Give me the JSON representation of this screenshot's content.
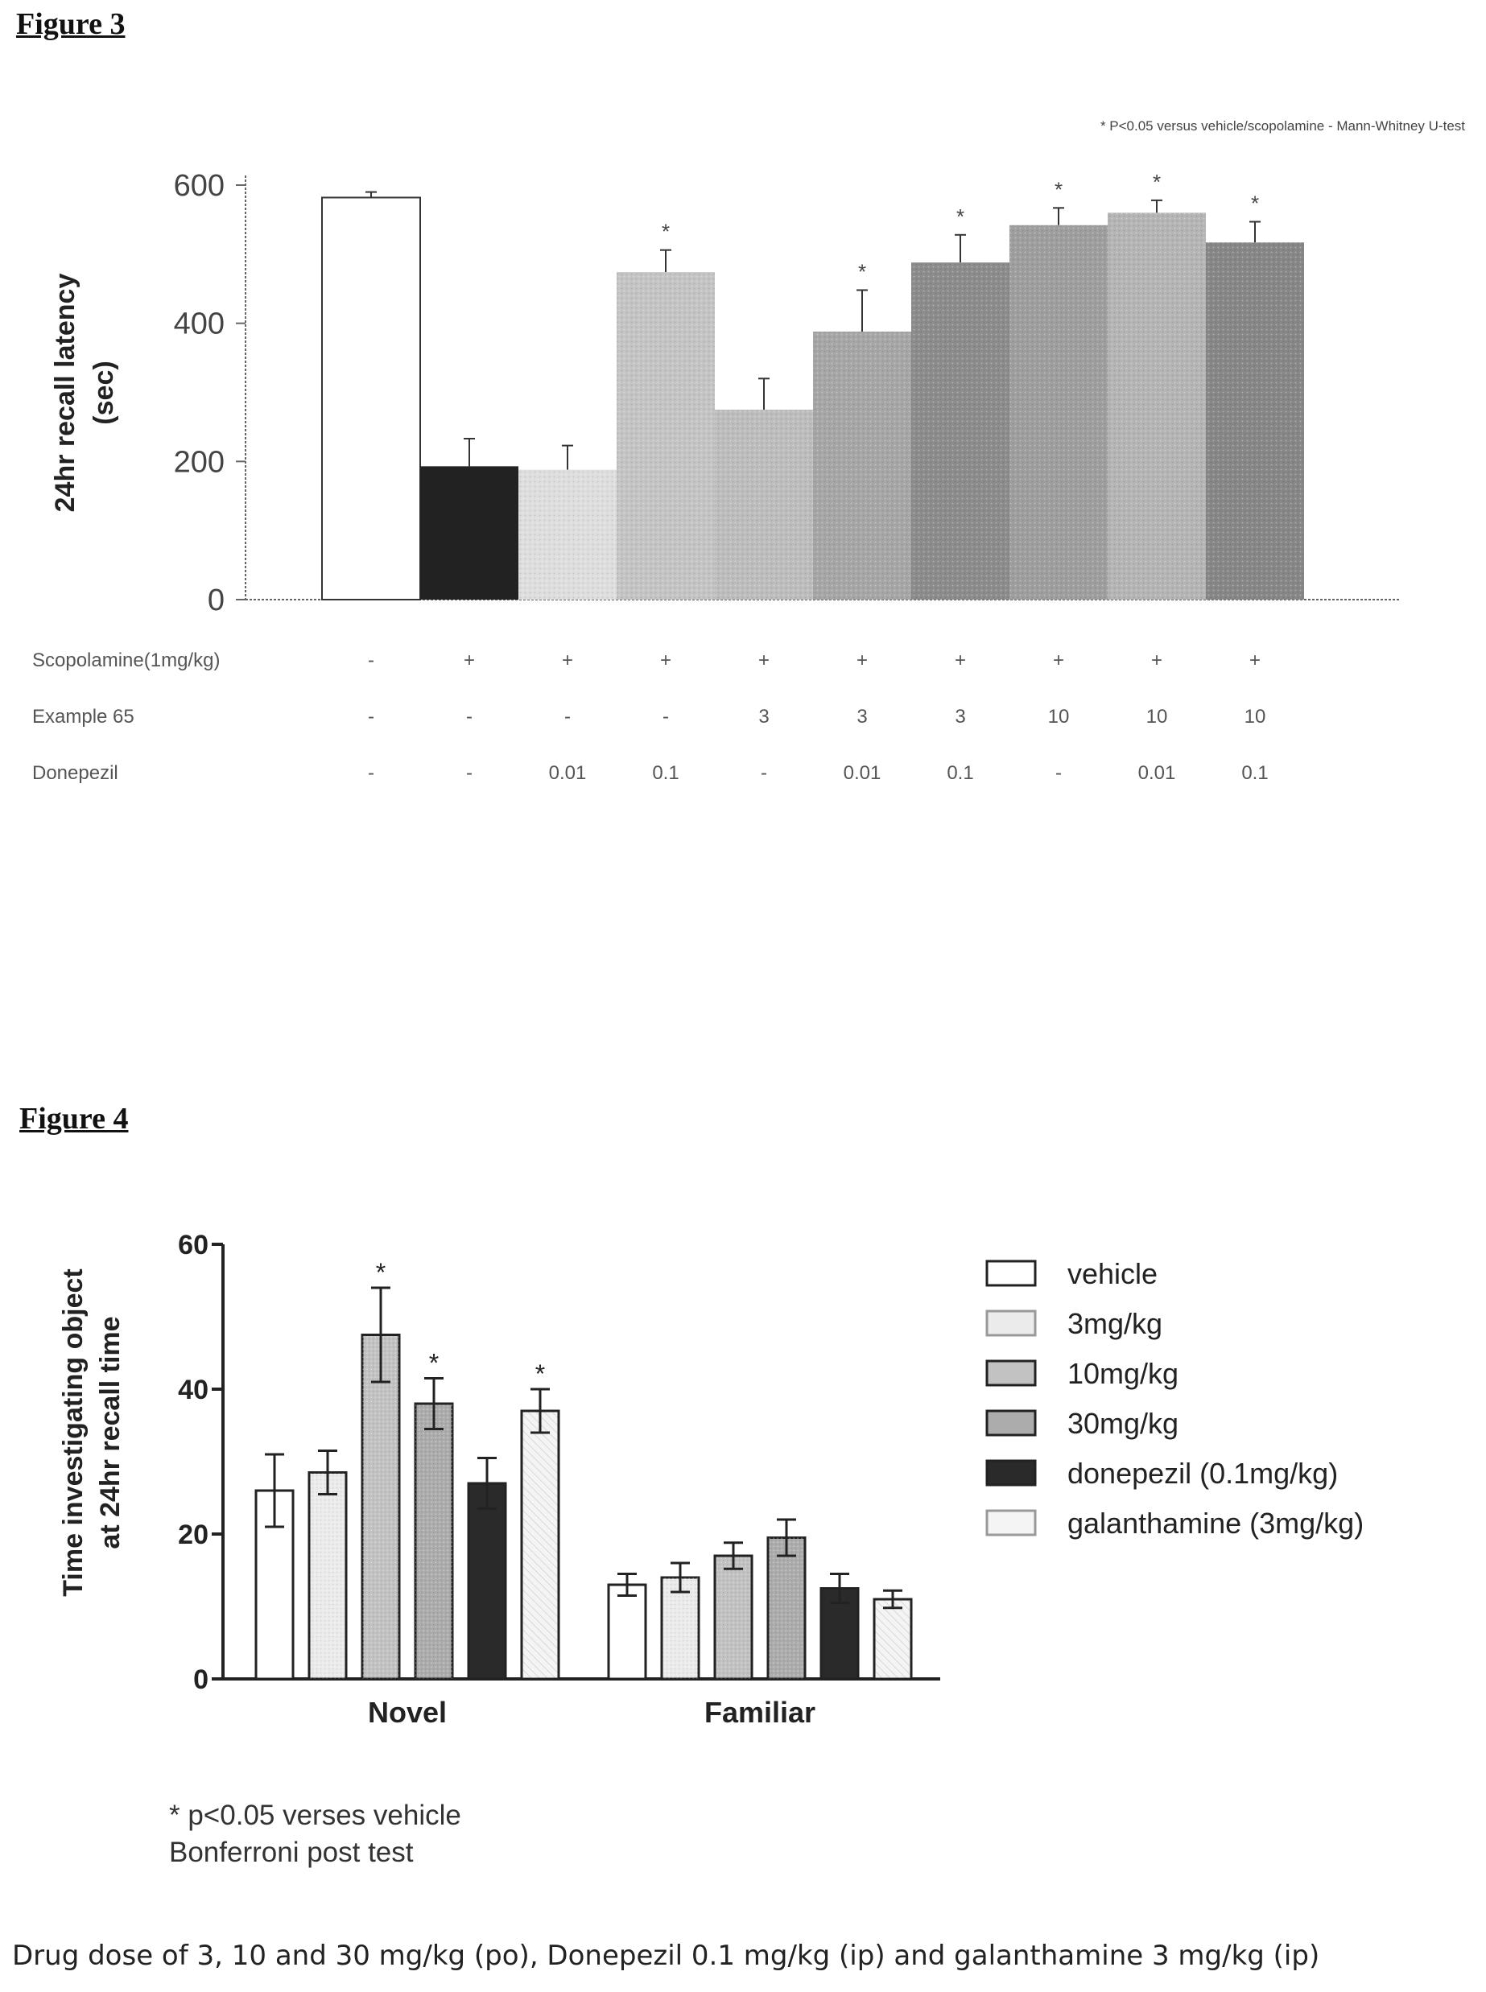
{
  "figure3": {
    "heading": "Figure 3",
    "chart_data": {
      "type": "bar",
      "ylabel_line1": "24hr recall latency",
      "ylabel_line2": "(sec)",
      "ylim": [
        0,
        600
      ],
      "yticks": [
        0,
        200,
        400,
        600
      ],
      "significance_note": "* P<0.05 versus vehicle/scopolamine - Mann-Whitney U-test",
      "values": [
        582,
        193,
        188,
        474,
        275,
        388,
        488,
        542,
        560,
        517
      ],
      "errors": [
        8,
        40,
        35,
        32,
        45,
        60,
        40,
        25,
        18,
        30
      ],
      "significant": [
        false,
        false,
        false,
        true,
        false,
        true,
        true,
        true,
        true,
        true
      ],
      "fills": [
        "#ffffff",
        "#222222",
        "#dedede",
        "#c4c4c4",
        "#bdbdbd",
        "#a6a6a6",
        "#8c8c8c",
        "#9e9e9e",
        "#b5b5b5",
        "#878787"
      ],
      "treatment_rows": [
        {
          "label": "Scopolamine(1mg/kg)",
          "values": [
            "-",
            "+",
            "+",
            "+",
            "+",
            "+",
            "+",
            "+",
            "+",
            "+"
          ]
        },
        {
          "label": "Example 65",
          "values": [
            "-",
            "-",
            "-",
            "-",
            "3",
            "3",
            "3",
            "10",
            "10",
            "10"
          ]
        },
        {
          "label": "Donepezil",
          "values": [
            "-",
            "-",
            "0.01",
            "0.1",
            "-",
            "0.01",
            "0.1",
            "-",
            "0.01",
            "0.1"
          ]
        }
      ]
    }
  },
  "figure4": {
    "heading": "Figure 4",
    "chart_data": {
      "type": "bar",
      "ylabel_line1": "Time investigating object",
      "ylabel_line2": "at 24hr recall time",
      "ylim": [
        0,
        60
      ],
      "yticks": [
        0,
        20,
        40,
        60
      ],
      "categories": [
        "Novel",
        "Familiar"
      ],
      "series": [
        {
          "name": "vehicle",
          "values": [
            26,
            13
          ],
          "errors": [
            5,
            1.5
          ],
          "significant": [
            false,
            false
          ],
          "fill": "#ffffff"
        },
        {
          "name": "3mg/kg",
          "values": [
            28.5,
            14
          ],
          "errors": [
            3,
            2
          ],
          "significant": [
            false,
            false
          ],
          "fill": "#ebebeb"
        },
        {
          "name": "10mg/kg",
          "values": [
            47.5,
            17
          ],
          "errors": [
            6.5,
            1.8
          ],
          "significant": [
            true,
            false
          ],
          "fill": "#c2c2c2"
        },
        {
          "name": "30mg/kg",
          "values": [
            38,
            19.5
          ],
          "errors": [
            3.5,
            2.5
          ],
          "significant": [
            true,
            false
          ],
          "fill": "#acacac"
        },
        {
          "name": "donepezil (0.1mg/kg)",
          "values": [
            27,
            12.5
          ],
          "errors": [
            3.5,
            2
          ],
          "significant": [
            false,
            false
          ],
          "fill": "#2a2a2a"
        },
        {
          "name": "galanthamine (3mg/kg)",
          "values": [
            37,
            11
          ],
          "errors": [
            3,
            1.2
          ],
          "significant": [
            true,
            false
          ],
          "fill": "#f4f4f4"
        }
      ],
      "legend_position": "right"
    },
    "note_line1": "* p<0.05 verses vehicle",
    "note_line2": "Bonferroni post test"
  },
  "bottom_caption": "Drug dose of 3, 10 and 30 mg/kg (po), Donepezil 0.1 mg/kg (ip) and galanthamine 3 mg/kg (ip)"
}
